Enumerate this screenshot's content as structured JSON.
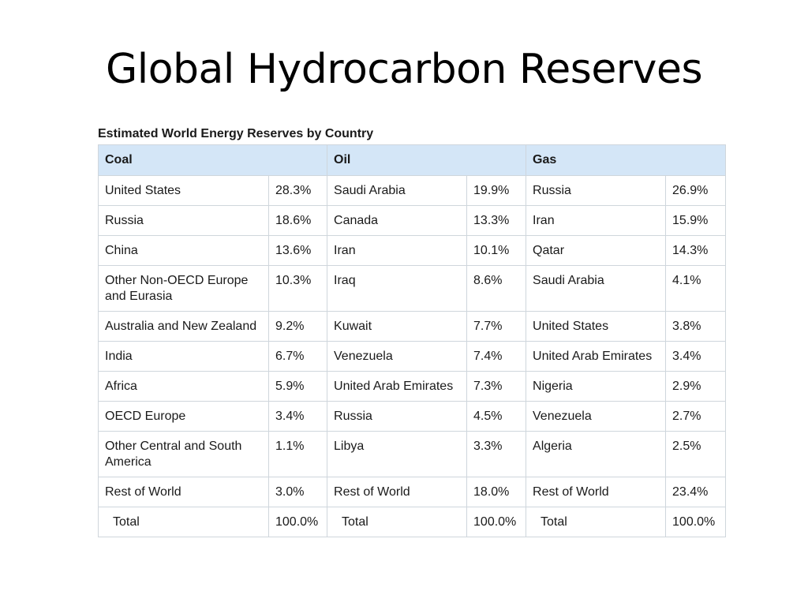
{
  "slide": {
    "title": "Global Hydrocarbon Reserves"
  },
  "table": {
    "caption": "Estimated World Energy Reserves by Country",
    "headers": [
      "Coal",
      "Oil",
      "Gas"
    ],
    "rows": [
      [
        {
          "name": "United States",
          "value": "28.3%"
        },
        {
          "name": "Saudi Arabia",
          "value": "19.9%"
        },
        {
          "name": "Russia",
          "value": "26.9%"
        }
      ],
      [
        {
          "name": "Russia",
          "value": "18.6%"
        },
        {
          "name": "Canada",
          "value": "13.3%"
        },
        {
          "name": "Iran",
          "value": "15.9%"
        }
      ],
      [
        {
          "name": "China",
          "value": "13.6%"
        },
        {
          "name": "Iran",
          "value": "10.1%"
        },
        {
          "name": "Qatar",
          "value": "14.3%"
        }
      ],
      [
        {
          "name": "Other Non-OECD Europe and Eurasia",
          "value": "10.3%"
        },
        {
          "name": "Iraq",
          "value": "8.6%"
        },
        {
          "name": "Saudi Arabia",
          "value": "4.1%"
        }
      ],
      [
        {
          "name": "Australia and New Zealand",
          "value": "9.2%"
        },
        {
          "name": "Kuwait",
          "value": "7.7%"
        },
        {
          "name": "United States",
          "value": "3.8%"
        }
      ],
      [
        {
          "name": "India",
          "value": "6.7%"
        },
        {
          "name": "Venezuela",
          "value": "7.4%"
        },
        {
          "name": "United Arab Emirates",
          "value": "3.4%"
        }
      ],
      [
        {
          "name": "Africa",
          "value": "5.9%"
        },
        {
          "name": "United Arab Emirates",
          "value": "7.3%"
        },
        {
          "name": "Nigeria",
          "value": "2.9%"
        }
      ],
      [
        {
          "name": "OECD Europe",
          "value": "3.4%"
        },
        {
          "name": "Russia",
          "value": "4.5%"
        },
        {
          "name": "Venezuela",
          "value": "2.7%"
        }
      ],
      [
        {
          "name": "Other Central and South America",
          "value": "1.1%"
        },
        {
          "name": "Libya",
          "value": "3.3%"
        },
        {
          "name": "Algeria",
          "value": "2.5%"
        }
      ],
      [
        {
          "name": "Rest of World",
          "value": "3.0%"
        },
        {
          "name": "Rest of World",
          "value": "18.0%"
        },
        {
          "name": "Rest of World",
          "value": "23.4%"
        }
      ],
      [
        {
          "name": "Total",
          "value": "100.0%"
        },
        {
          "name": "Total",
          "value": "100.0%"
        },
        {
          "name": "Total",
          "value": "100.0%"
        }
      ]
    ]
  },
  "colors": {
    "header_bg": "#d4e6f7",
    "border": "#cfd6dc",
    "text": "#1a1a1a"
  }
}
